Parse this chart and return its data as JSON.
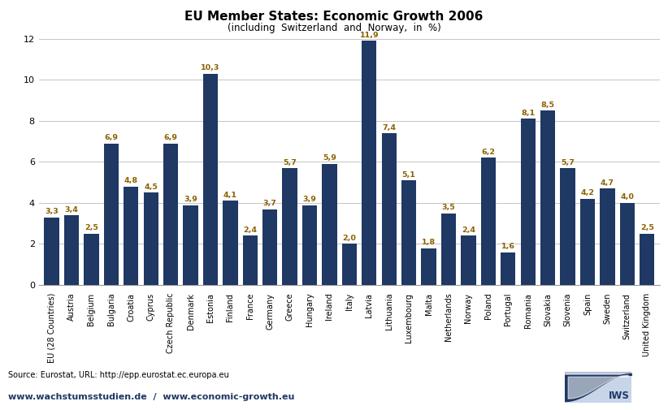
{
  "title": "EU Member States: Economic Growth 2006",
  "subtitle": "(including  Switzerland  and  Norway,  in  %)",
  "categories": [
    "EU (28 Countries)",
    "Austria",
    "Belgium",
    "Bulgaria",
    "Croatia",
    "Cyprus",
    "Czech Republic",
    "Denmark",
    "Estonia",
    "Finland",
    "France",
    "Germany",
    "Greece",
    "Hungary",
    "Ireland",
    "Italy",
    "Latvia",
    "Lithuania",
    "Luxembourg",
    "Malta",
    "Netherlands",
    "Norway",
    "Poland",
    "Portugal",
    "Romania",
    "Slovakia",
    "Slovenia",
    "Spain",
    "Sweden",
    "Switzerland",
    "United Kingdom"
  ],
  "values": [
    3.3,
    3.4,
    2.5,
    6.9,
    4.8,
    4.5,
    6.9,
    3.9,
    10.3,
    4.1,
    2.4,
    3.7,
    5.7,
    3.9,
    5.9,
    2.0,
    11.9,
    7.4,
    5.1,
    1.8,
    3.5,
    2.4,
    6.2,
    1.6,
    8.1,
    8.5,
    5.7,
    4.2,
    4.7,
    4.0,
    2.5
  ],
  "bar_color": "#1F3864",
  "label_color": "#8B6000",
  "ylim": [
    0,
    12
  ],
  "yticks": [
    0,
    2,
    4,
    6,
    8,
    10,
    12
  ],
  "grid_color": "#BBBBBB",
  "bg_color": "#FFFFFF",
  "source_text": "Source: Eurostat, URL: http://epp.eurostat.ec.europa.eu",
  "footer_left": "www.wachstumsstudien.de  /  www.economic-growth.eu",
  "title_fontsize": 11,
  "subtitle_fontsize": 8.5,
  "label_fontsize": 6.8,
  "tick_label_fontsize": 7,
  "ytick_fontsize": 8,
  "source_fontsize": 7,
  "footer_fontsize": 8
}
